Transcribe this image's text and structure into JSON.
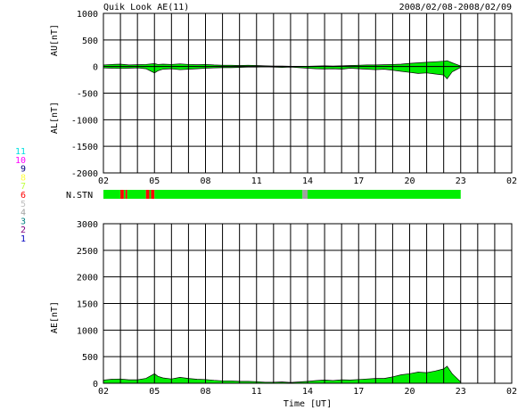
{
  "title": "Quik Look AE(11)",
  "date_range": "2008/02/08-2008/02/09",
  "x_axis_label": "Time [UT]",
  "colors": {
    "fill": "#00ee00",
    "outline": "#000000",
    "grid": "#000000",
    "background": "#ffffff"
  },
  "station_legend": [
    {
      "label": "11",
      "color": "#00e0e0"
    },
    {
      "label": "10",
      "color": "#ff00ff"
    },
    {
      "label": "9",
      "color": "#000080"
    },
    {
      "label": "8",
      "color": "#ffff40"
    },
    {
      "label": "7",
      "color": "#c0ff40"
    },
    {
      "label": "6",
      "color": "#ff0000"
    },
    {
      "label": "5",
      "color": "#c0c0c0"
    },
    {
      "label": "4",
      "color": "#a0a0a0"
    },
    {
      "label": "3",
      "color": "#008080"
    },
    {
      "label": "2",
      "color": "#800080"
    },
    {
      "label": "1",
      "color": "#0000c0"
    }
  ],
  "chart_data": [
    {
      "type": "area",
      "ylabel_upper": "AU[nT]",
      "ylabel_lower": "AL[nT]",
      "ylim": [
        -2000,
        1000
      ],
      "y_ticks": [
        "1000",
        "500",
        "0",
        "-500",
        "-1000",
        "-1500",
        "-2000"
      ],
      "x_tick_labels": [
        "02",
        "05",
        "08",
        "11",
        "14",
        "17",
        "20",
        "23",
        "02"
      ],
      "xlim_hours": [
        0,
        24
      ],
      "data_end_hour": 21,
      "grid": true,
      "series": [
        {
          "key": "AU",
          "x": [
            0,
            0.5,
            1,
            1.5,
            2,
            2.5,
            3,
            3.2,
            3.5,
            4,
            4.5,
            5,
            5.5,
            6,
            6.5,
            7,
            7.5,
            8,
            8.5,
            9,
            9.5,
            10,
            10.5,
            11,
            11.5,
            12,
            12.5,
            13,
            13.5,
            14,
            14.5,
            15,
            15.5,
            16,
            16.5,
            17,
            17.5,
            18,
            18.5,
            19,
            19.5,
            20,
            20.2,
            20.5,
            21
          ],
          "values": [
            30,
            40,
            45,
            30,
            35,
            40,
            55,
            40,
            45,
            40,
            50,
            40,
            35,
            40,
            30,
            25,
            25,
            20,
            25,
            20,
            15,
            10,
            10,
            5,
            5,
            5,
            10,
            15,
            10,
            15,
            20,
            25,
            30,
            30,
            35,
            40,
            45,
            60,
            70,
            80,
            90,
            100,
            110,
            70,
            10
          ]
        },
        {
          "key": "AL",
          "x": [
            0,
            0.5,
            1,
            1.5,
            2,
            2.5,
            3,
            3.2,
            3.5,
            4,
            4.5,
            5,
            5.5,
            6,
            6.5,
            7,
            7.5,
            8,
            8.5,
            9,
            9.5,
            10,
            10.5,
            11,
            11.5,
            12,
            12.5,
            13,
            13.5,
            14,
            14.5,
            15,
            15.5,
            16,
            16.5,
            17,
            17.5,
            18,
            18.5,
            19,
            19.5,
            20,
            20.2,
            20.5,
            21
          ],
          "values": [
            -25,
            -30,
            -35,
            -30,
            -25,
            -40,
            -120,
            -80,
            -50,
            -40,
            -60,
            -50,
            -40,
            -30,
            -25,
            -20,
            -20,
            -15,
            -10,
            -10,
            -5,
            -10,
            -15,
            -10,
            -20,
            -30,
            -40,
            -45,
            -40,
            -50,
            -30,
            -40,
            -50,
            -60,
            -50,
            -70,
            -90,
            -110,
            -130,
            -120,
            -140,
            -160,
            -230,
            -100,
            -15
          ]
        }
      ]
    },
    {
      "type": "bar",
      "ylabel": "N.STN",
      "x_hours": [
        0,
        1.0,
        1.2,
        1.3,
        1.4,
        2.5,
        2.7,
        2.8,
        3.0,
        3.2,
        11.7,
        12.0,
        12.2,
        21
      ],
      "segments": [
        {
          "from": 0,
          "to": 1.0,
          "stations": 11
        },
        {
          "from": 1.0,
          "to": 1.2,
          "stations": 6
        },
        {
          "from": 1.2,
          "to": 1.3,
          "stations": 11
        },
        {
          "from": 1.3,
          "to": 1.4,
          "stations": 6
        },
        {
          "from": 1.4,
          "to": 2.5,
          "stations": 11
        },
        {
          "from": 2.5,
          "to": 2.7,
          "stations": 6
        },
        {
          "from": 2.7,
          "to": 2.8,
          "stations": 11
        },
        {
          "from": 2.8,
          "to": 3.0,
          "stations": 6
        },
        {
          "from": 3.0,
          "to": 11.7,
          "stations": 11
        },
        {
          "from": 11.7,
          "to": 12.0,
          "stations": 4
        },
        {
          "from": 12.0,
          "to": 21,
          "stations": 11
        }
      ]
    },
    {
      "type": "area",
      "ylabel": "AE[nT]",
      "ylim": [
        0,
        3000
      ],
      "y_ticks": [
        "3000",
        "2500",
        "2000",
        "1500",
        "1000",
        "500",
        "0"
      ],
      "x_tick_labels": [
        "02",
        "05",
        "08",
        "11",
        "14",
        "17",
        "20",
        "23",
        "02"
      ],
      "xlim_hours": [
        0,
        24
      ],
      "grid": true,
      "series": [
        {
          "key": "AE",
          "x": [
            0,
            0.5,
            1,
            1.5,
            2,
            2.5,
            3,
            3.2,
            3.5,
            4,
            4.5,
            5,
            5.5,
            6,
            6.5,
            7,
            7.5,
            8,
            8.5,
            9,
            9.5,
            10,
            10.5,
            11,
            11.5,
            12,
            12.5,
            13,
            13.5,
            14,
            14.5,
            15,
            15.5,
            16,
            16.5,
            17,
            17.5,
            18,
            18.5,
            19,
            19.5,
            20,
            20.2,
            20.5,
            21
          ],
          "values": [
            60,
            75,
            80,
            65,
            65,
            90,
            180,
            130,
            100,
            80,
            110,
            90,
            75,
            70,
            55,
            45,
            45,
            35,
            35,
            30,
            20,
            20,
            25,
            15,
            25,
            35,
            50,
            60,
            50,
            65,
            60,
            70,
            80,
            90,
            90,
            120,
            160,
            180,
            210,
            200,
            230,
            270,
            320,
            180,
            25
          ]
        }
      ]
    }
  ]
}
